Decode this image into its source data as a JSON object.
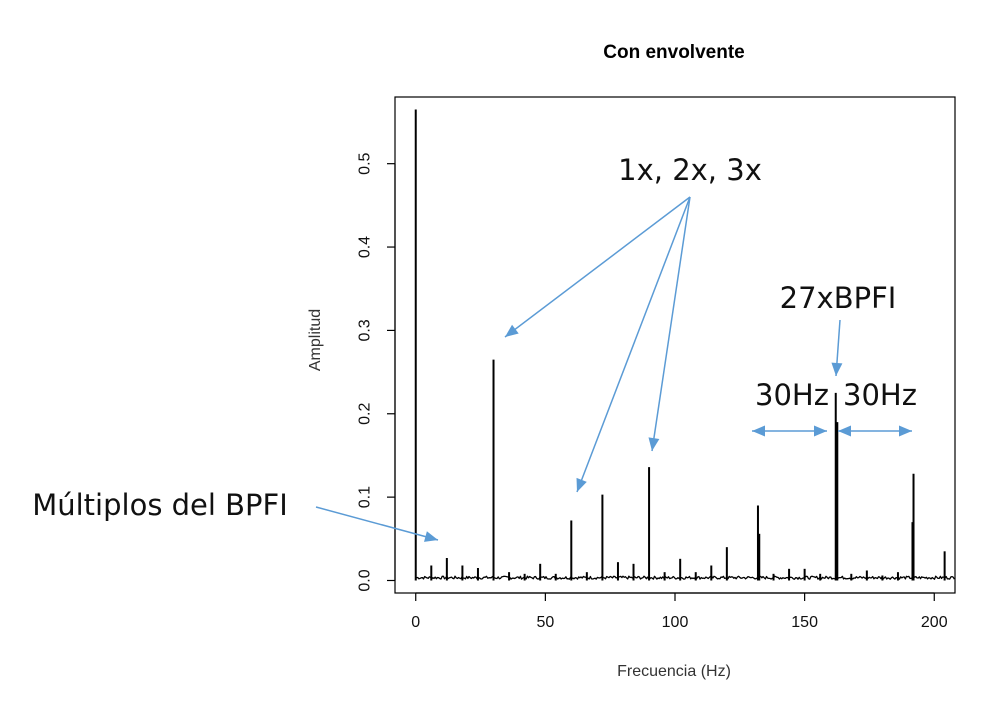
{
  "chart_data": {
    "type": "line",
    "title": "Con envolvente",
    "xlabel": "Frecuencia (Hz)",
    "ylabel": "Amplitud",
    "xlim": [
      -8,
      208
    ],
    "ylim": [
      -0.015,
      0.58
    ],
    "xticks": [
      0,
      50,
      100,
      150,
      200
    ],
    "yticks": [
      0.0,
      0.1,
      0.2,
      0.3,
      0.4,
      0.5
    ],
    "xtick_labels": [
      "0",
      "50",
      "100",
      "150",
      "200"
    ],
    "ytick_labels": [
      "0.0",
      "0.1",
      "0.2",
      "0.3",
      "0.4",
      "0.5"
    ],
    "grid": false,
    "noise_floor": 0.004,
    "peaks": {
      "x": [
        0,
        6,
        12,
        18,
        24,
        30,
        36,
        42,
        48,
        54,
        60,
        66,
        72,
        78,
        84,
        90,
        96,
        102,
        108,
        114,
        120,
        132,
        138,
        144,
        150,
        156,
        162,
        168,
        174,
        180,
        186,
        192,
        204
      ],
      "y": [
        0.565,
        0.018,
        0.027,
        0.018,
        0.015,
        0.265,
        0.01,
        0.008,
        0.02,
        0.008,
        0.072,
        0.01,
        0.103,
        0.022,
        0.02,
        0.136,
        0.01,
        0.026,
        0.01,
        0.018,
        0.04,
        0.09,
        0.008,
        0.014,
        0.014,
        0.008,
        0.225,
        0.008,
        0.012,
        0.006,
        0.01,
        0.128,
        0.035
      ]
    },
    "secondary_peaks": {
      "x": [
        132.5,
        162.6,
        191.6
      ],
      "y": [
        0.056,
        0.19,
        0.07
      ]
    },
    "annotations": [
      {
        "text": "1x, 2x, 3x",
        "points_to_x": [
          30,
          60,
          90
        ]
      },
      {
        "text": "27xBPFI",
        "points_to_x": [
          162
        ]
      },
      {
        "text": "30Hz",
        "side": "left"
      },
      {
        "text": "30Hz",
        "side": "right"
      },
      {
        "text": "Múltiplos del BPFI",
        "points_to_x": [
          6
        ]
      }
    ]
  },
  "colors": {
    "arrow": "#5b9bd5",
    "line": "#000000"
  }
}
